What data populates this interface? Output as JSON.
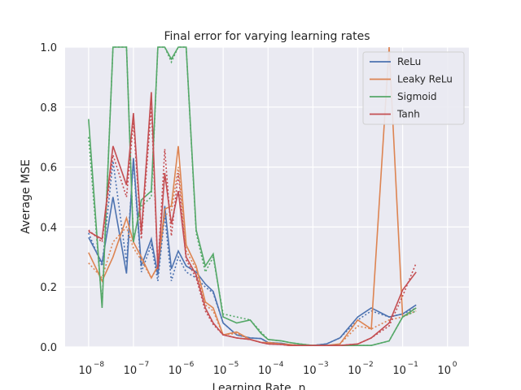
{
  "chart_data": {
    "type": "line",
    "title": "Final error for varying learning rates",
    "xlabel": "Learning Rate, η",
    "ylabel": "Average MSE",
    "xscale": "log",
    "xlim": [
      3e-09,
      3.0
    ],
    "ylim": [
      0,
      1.0
    ],
    "yticks": [
      "0.0",
      "0.2",
      "0.4",
      "0.6",
      "0.8",
      "1.0"
    ],
    "xticks": [
      {
        "base": "10",
        "exp": "−8"
      },
      {
        "base": "10",
        "exp": "−7"
      },
      {
        "base": "10",
        "exp": "−6"
      },
      {
        "base": "10",
        "exp": "−5"
      },
      {
        "base": "10",
        "exp": "−4"
      },
      {
        "base": "10",
        "exp": "−3"
      },
      {
        "base": "10",
        "exp": "−2"
      },
      {
        "base": "10",
        "exp": "−1"
      },
      {
        "base": "10",
        "exp": "0"
      }
    ],
    "grid": true,
    "legend_position": "top-right",
    "background": "#eaeaf2",
    "x": [
      1e-08,
      2e-08,
      3.5e-08,
      7e-08,
      1e-07,
      1.5e-07,
      2.5e-07,
      3.5e-07,
      5e-07,
      7e-07,
      1e-06,
      1.5e-06,
      2.5e-06,
      4e-06,
      6e-06,
      1e-05,
      2e-05,
      4e-05,
      7e-05,
      0.0001,
      0.0002,
      0.0003,
      0.0005,
      0.001,
      0.002,
      0.004,
      0.01,
      0.02,
      0.05,
      0.1,
      0.2,
      0.35,
      0.5,
      0.7,
      1.0
    ],
    "series": [
      {
        "name": "ReLu",
        "color": "#4c72b0",
        "values": [
          0.365,
          0.28,
          0.5,
          0.245,
          0.63,
          0.27,
          0.36,
          0.24,
          0.47,
          0.26,
          0.32,
          0.27,
          0.25,
          0.21,
          0.185,
          0.08,
          0.04,
          0.03,
          0.028,
          0.015,
          0.012,
          0.008,
          0.005,
          0.005,
          0.01,
          0.03,
          0.1,
          0.13,
          0.1,
          0.11,
          0.14,
          null,
          null,
          null,
          null
        ],
        "dotted": [
          0.38,
          0.27,
          0.62,
          0.28,
          0.62,
          0.25,
          0.34,
          0.22,
          0.44,
          0.22,
          0.3,
          0.25,
          0.23,
          0.2,
          0.18,
          0.08,
          0.04,
          0.03,
          0.028,
          0.015,
          0.012,
          0.008,
          0.005,
          0.005,
          0.01,
          0.03,
          0.09,
          0.12,
          0.1,
          0.11,
          0.13,
          null,
          null,
          null,
          null
        ]
      },
      {
        "name": "Leaky ReLu",
        "color": "#dd8452",
        "values": [
          0.315,
          0.22,
          0.3,
          0.43,
          0.35,
          0.3,
          0.23,
          0.27,
          0.46,
          0.47,
          0.67,
          0.34,
          0.27,
          0.15,
          0.13,
          0.04,
          0.05,
          0.025,
          0.015,
          0.015,
          0.01,
          0.008,
          0.005,
          0.005,
          0.005,
          0.01,
          0.09,
          0.06,
          1.0,
          0.1,
          0.13,
          null,
          null,
          null,
          null
        ],
        "dotted": [
          0.28,
          0.23,
          0.35,
          0.4,
          0.33,
          0.29,
          0.23,
          0.27,
          0.44,
          0.45,
          0.6,
          0.32,
          0.26,
          0.14,
          0.12,
          0.04,
          0.045,
          0.025,
          0.015,
          0.015,
          0.01,
          0.008,
          0.005,
          0.005,
          0.005,
          0.01,
          0.07,
          0.06,
          0.09,
          0.1,
          0.12,
          null,
          null,
          null,
          null
        ]
      },
      {
        "name": "Sigmoid",
        "color": "#55a868",
        "values": [
          0.76,
          0.13,
          1.0,
          1.0,
          0.35,
          0.49,
          0.52,
          1.0,
          1.0,
          0.96,
          1.0,
          1.0,
          0.39,
          0.27,
          0.31,
          0.1,
          0.08,
          0.09,
          0.045,
          0.025,
          0.02,
          0.015,
          0.01,
          0.005,
          0.005,
          0.005,
          0.005,
          0.005,
          0.02,
          0.1,
          0.13,
          null,
          null,
          null,
          null
        ],
        "dotted": [
          0.7,
          0.14,
          1.0,
          1.0,
          0.36,
          0.47,
          0.5,
          1.0,
          1.0,
          0.95,
          1.0,
          1.0,
          0.38,
          0.25,
          0.3,
          0.11,
          0.1,
          0.09,
          0.05,
          0.025,
          0.02,
          0.015,
          0.01,
          0.005,
          0.005,
          0.005,
          0.005,
          0.005,
          0.02,
          0.1,
          0.12,
          null,
          null,
          null,
          null
        ]
      },
      {
        "name": "Tanh",
        "color": "#c44e52",
        "values": [
          0.385,
          0.36,
          0.67,
          0.54,
          0.78,
          0.38,
          0.85,
          0.26,
          0.58,
          0.41,
          0.52,
          0.3,
          0.24,
          0.13,
          0.08,
          0.04,
          0.03,
          0.025,
          0.015,
          0.01,
          0.008,
          0.005,
          0.005,
          0.005,
          0.005,
          0.005,
          0.01,
          0.03,
          0.08,
          0.19,
          0.25,
          null,
          null,
          null,
          null
        ],
        "dotted": [
          0.39,
          0.35,
          0.64,
          0.5,
          0.75,
          0.36,
          0.8,
          0.26,
          0.66,
          0.37,
          0.58,
          0.29,
          0.23,
          0.12,
          0.075,
          0.04,
          0.03,
          0.025,
          0.015,
          0.01,
          0.008,
          0.005,
          0.005,
          0.005,
          0.005,
          0.005,
          0.01,
          0.03,
          0.07,
          0.17,
          0.28,
          null,
          null,
          null,
          null
        ]
      }
    ]
  }
}
